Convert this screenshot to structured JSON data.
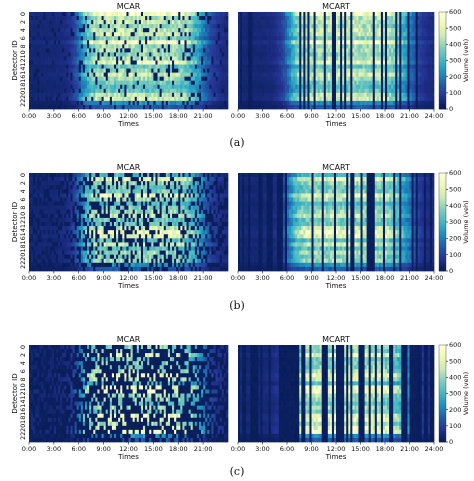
{
  "palette": [
    "#081d58",
    "#253494",
    "#225ea8",
    "#1d91c0",
    "#41b6c4",
    "#7fcdbb",
    "#c7e9b4",
    "#edf8b1",
    "#ffffd9"
  ],
  "chart_data": [
    {
      "type": "heatmap",
      "caption": "(a)",
      "ylabel": "Detector ID",
      "xlabel": "Times",
      "colorbar": {
        "label": "Volume (veh)",
        "ticks": [
          0,
          100,
          200,
          300,
          400,
          500,
          600
        ],
        "range": [
          0,
          600
        ]
      },
      "y_ticks": [
        "0",
        "2",
        "4",
        "6",
        "8",
        "10",
        "12",
        "14",
        "16",
        "18",
        "20",
        "22"
      ],
      "rows": 24,
      "cols": 96,
      "panels": [
        {
          "title": "MCAR",
          "x_ticks": [
            "0:00",
            "3:00",
            "6:00",
            "9:00",
            "12:00",
            "15:00",
            "18:00",
            "21:00"
          ],
          "missing_rate": 0.15,
          "missing_style": "random"
        },
        {
          "title": "MCART",
          "x_ticks": [
            "0:00",
            "3:00",
            "6:00",
            "9:00",
            "12:00",
            "15:00",
            "18:00",
            "21:00",
            "24:00"
          ],
          "missing_rate": 0.15,
          "missing_style": "columns"
        }
      ]
    },
    {
      "type": "heatmap",
      "caption": "(b)",
      "ylabel": "Detector ID",
      "xlabel": "Times",
      "colorbar": {
        "label": "Volume (veh)",
        "ticks": [
          0,
          100,
          200,
          300,
          400,
          500,
          600
        ],
        "range": [
          0,
          600
        ]
      },
      "y_ticks": [
        "0",
        "2",
        "4",
        "6",
        "8",
        "10",
        "12",
        "14",
        "16",
        "18",
        "20",
        "22"
      ],
      "rows": 24,
      "cols": 96,
      "panels": [
        {
          "title": "MCAR",
          "x_ticks": [
            "0:00",
            "3:00",
            "6:00",
            "9:00",
            "12:00",
            "15:00",
            "18:00",
            "21:00"
          ],
          "missing_rate": 0.35,
          "missing_style": "random"
        },
        {
          "title": "MCART",
          "x_ticks": [
            "0:00",
            "3:00",
            "6:00",
            "9:00",
            "12:00",
            "15:00",
            "18:00",
            "21:00",
            "24:00"
          ],
          "missing_rate": 0.35,
          "missing_style": "columns"
        }
      ]
    },
    {
      "type": "heatmap",
      "caption": "(c)",
      "ylabel": "Detector ID",
      "xlabel": "Times",
      "colorbar": {
        "label": "Volume (veh)",
        "ticks": [
          0,
          100,
          200,
          300,
          400,
          500,
          600
        ],
        "range": [
          0,
          600
        ]
      },
      "y_ticks": [
        "0",
        "2",
        "4",
        "6",
        "8",
        "10",
        "12",
        "14",
        "16",
        "18",
        "20",
        "22"
      ],
      "rows": 24,
      "cols": 96,
      "panels": [
        {
          "title": "MCAR",
          "x_ticks": [
            "0:00",
            "3:00",
            "6:00",
            "9:00",
            "12:00",
            "15:00",
            "18:00",
            "21:00"
          ],
          "missing_rate": 0.6,
          "missing_style": "random"
        },
        {
          "title": "MCART",
          "x_ticks": [
            "0:00",
            "3:00",
            "6:00",
            "9:00",
            "12:00",
            "15:00",
            "18:00",
            "21:00",
            "24:00"
          ],
          "missing_rate": 0.6,
          "missing_style": "columns"
        }
      ]
    }
  ]
}
